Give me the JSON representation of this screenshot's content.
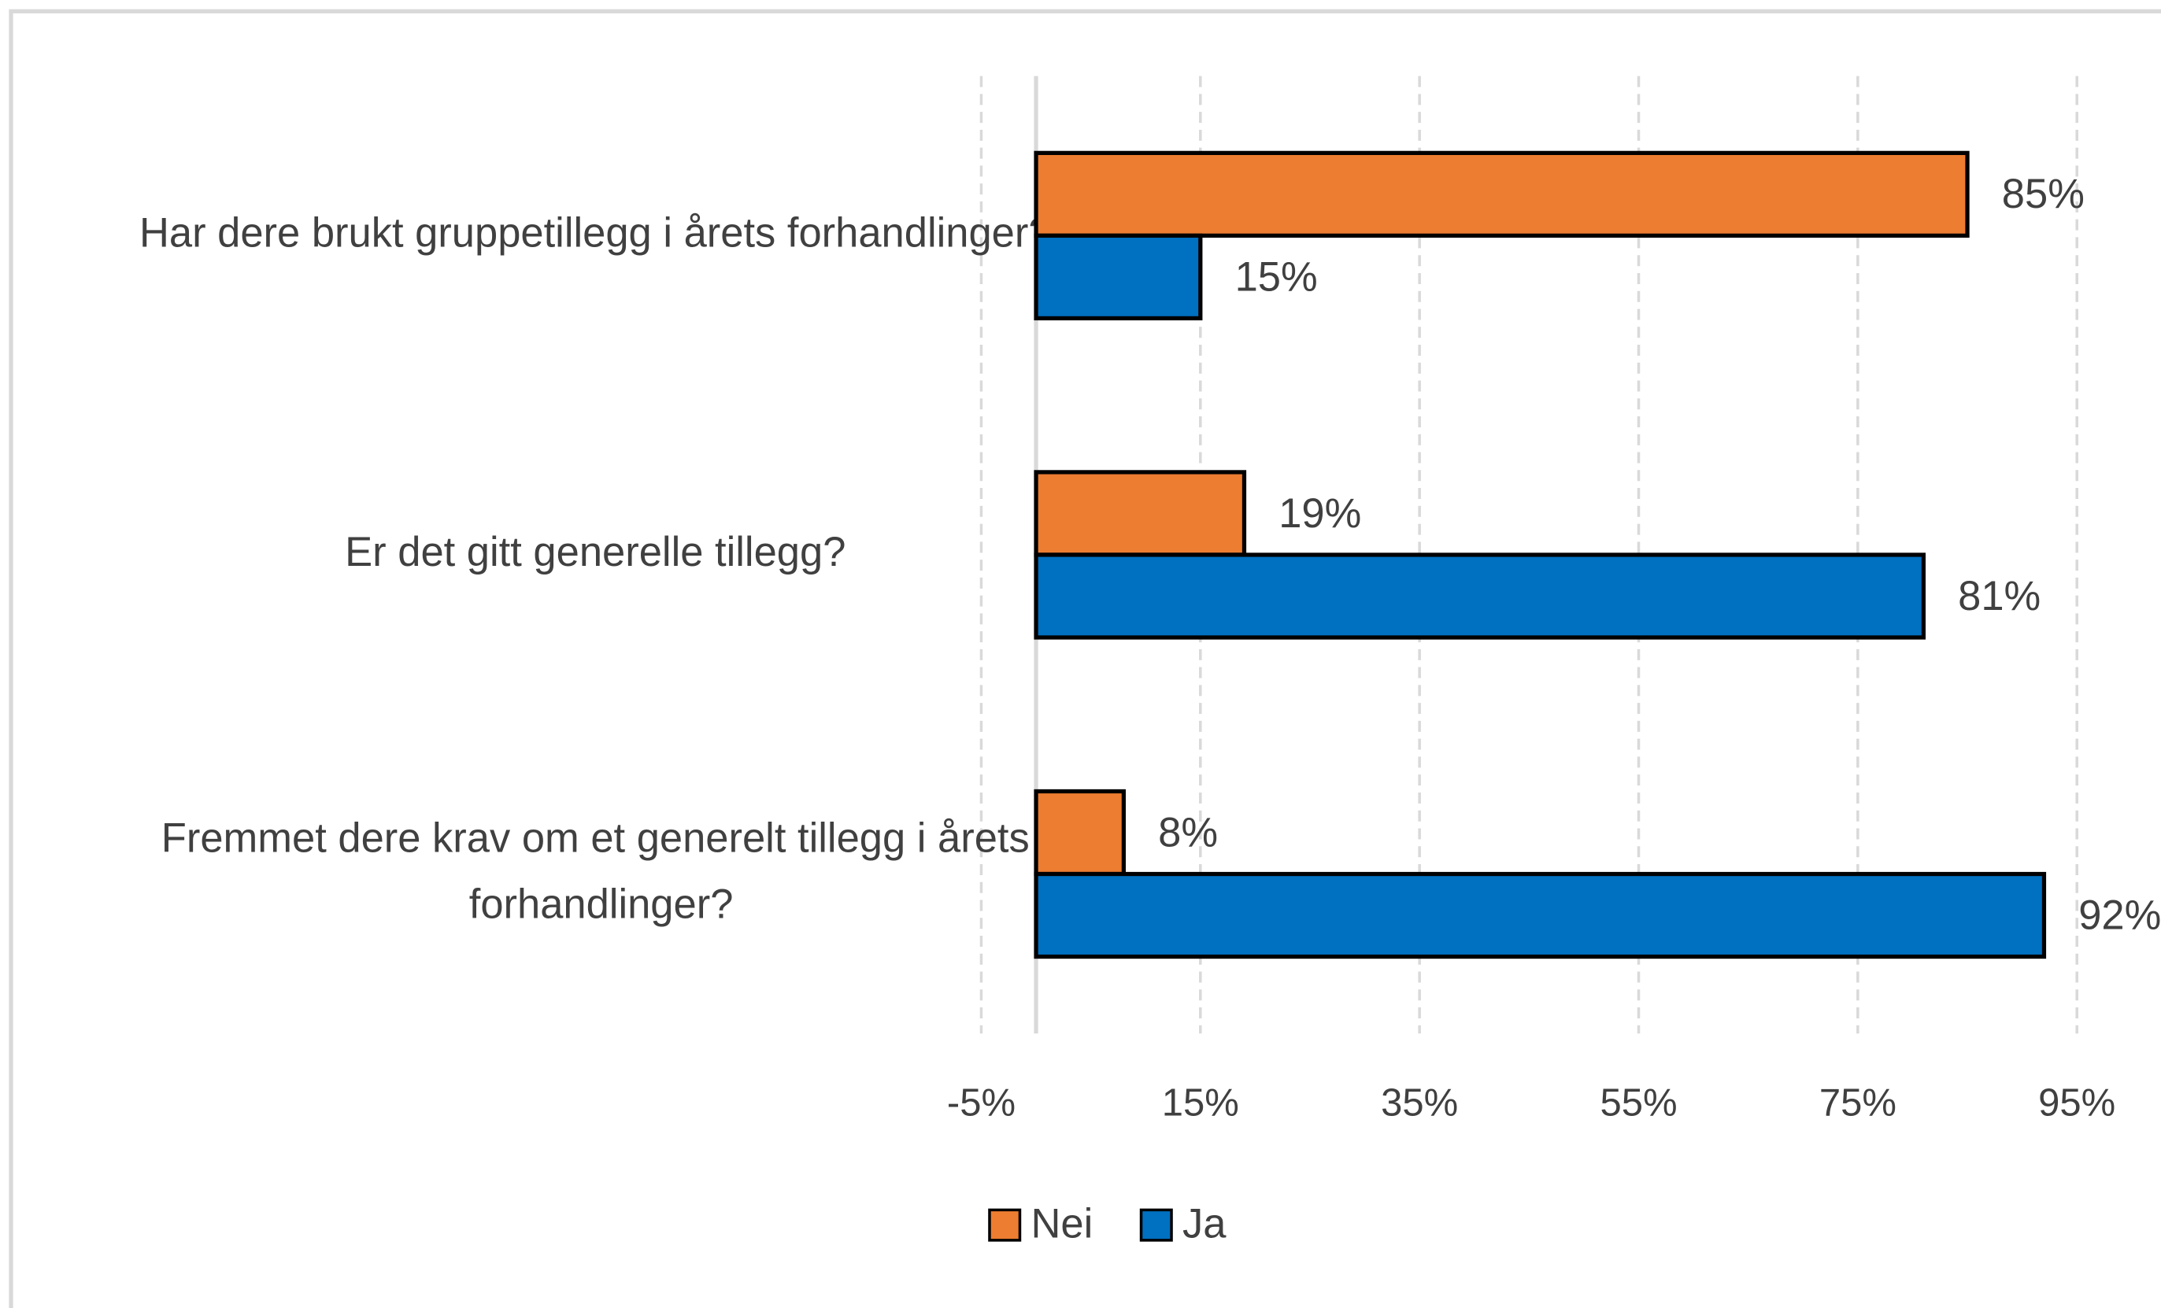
{
  "chart_data": {
    "type": "hbar",
    "categories": [
      "Har dere brukt gruppetillegg i årets forhandlinger?",
      "Er det gitt generelle tillegg?",
      "Fremmet dere krav om et generelt tillegg i årets forhandlinger?"
    ],
    "series": [
      {
        "name": "Nei",
        "color": "#ED7D31",
        "values": [
          85,
          19,
          8
        ],
        "value_labels": [
          "85%",
          "19%",
          "8%"
        ]
      },
      {
        "name": "Ja",
        "color": "#0070C0",
        "values": [
          15,
          81,
          92
        ],
        "value_labels": [
          "15%",
          "81%",
          "92%"
        ]
      }
    ],
    "xlim": [
      -5,
      95
    ],
    "xticks": [
      {
        "value": -5,
        "label": "-5%"
      },
      {
        "value": 15,
        "label": "15%"
      },
      {
        "value": 35,
        "label": "35%"
      },
      {
        "value": 55,
        "label": "55%"
      },
      {
        "value": 75,
        "label": "75%"
      },
      {
        "value": 95,
        "label": "95%"
      }
    ],
    "grid": true,
    "legend": "bottom"
  }
}
